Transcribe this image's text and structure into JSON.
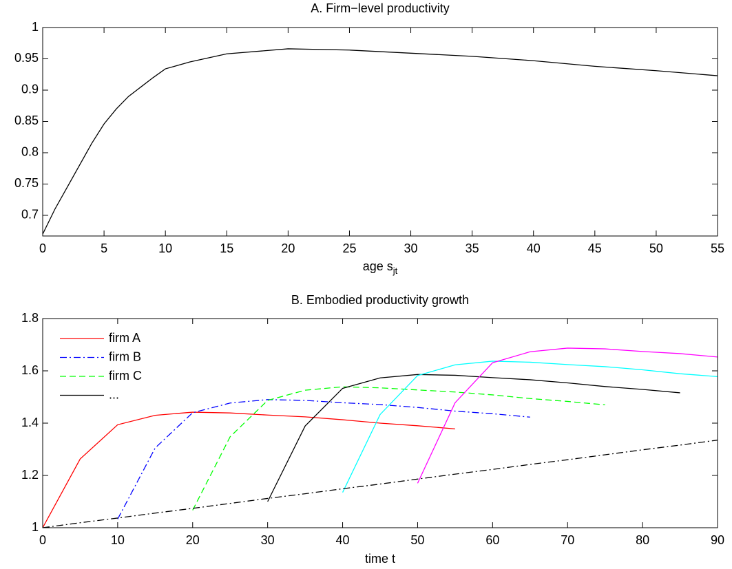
{
  "chart_data": [
    {
      "type": "line",
      "title": "A. Firm−level productivity",
      "xlabel": "age s",
      "xlabel_sub": "jt",
      "x": [
        0,
        1,
        2,
        3,
        4,
        5,
        6,
        7,
        8,
        9,
        10,
        12,
        15,
        20,
        25,
        30,
        35,
        40,
        45,
        50,
        55
      ],
      "series": [
        {
          "color": "#000000",
          "style": "solid",
          "values": [
            0.67,
            0.71,
            0.745,
            0.78,
            0.815,
            0.846,
            0.87,
            0.89,
            0.905,
            0.92,
            0.934,
            0.945,
            0.958,
            0.966,
            0.964,
            0.959,
            0.954,
            0.947,
            0.938,
            0.931,
            0.923
          ]
        }
      ],
      "xlim": [
        0,
        55
      ],
      "xticks": [
        0,
        5,
        10,
        15,
        20,
        25,
        30,
        35,
        40,
        45,
        50,
        55
      ],
      "ylim": [
        0.667,
        1
      ],
      "yticks": [
        0.7,
        0.75,
        0.8,
        0.85,
        0.9,
        0.95,
        1
      ]
    },
    {
      "type": "line",
      "title": "B. Embodied productivity growth",
      "xlabel": "time t",
      "x": [
        0,
        5,
        10,
        15,
        20,
        25,
        30,
        35,
        40,
        45,
        50,
        55,
        60,
        65,
        70,
        75,
        80,
        85,
        90
      ],
      "series": [
        {
          "name": "firm A",
          "color": "#ff0000",
          "style": "solid",
          "values": [
            1,
            1.263,
            1.394,
            1.43,
            1.442,
            1.439,
            1.431,
            1.424,
            1.413,
            1.4,
            1.39,
            1.378,
            null,
            null,
            null,
            null,
            null,
            null,
            null
          ]
        },
        {
          "name": "firm B",
          "color": "#0000ff",
          "style": "dashdot",
          "values": [
            null,
            null,
            1.033,
            1.305,
            1.44,
            1.477,
            1.49,
            1.487,
            1.478,
            1.471,
            1.46,
            1.446,
            1.436,
            1.423,
            null,
            null,
            null,
            null,
            null
          ]
        },
        {
          "name": "firm C",
          "color": "#00ff00",
          "style": "dashed",
          "values": [
            null,
            null,
            null,
            null,
            1.067,
            1.348,
            1.487,
            1.526,
            1.539,
            1.535,
            1.527,
            1.519,
            1.508,
            1.494,
            1.483,
            1.47,
            null,
            null,
            null
          ]
        },
        {
          "name": "...",
          "color": "#000000",
          "style": "solid",
          "values": [
            null,
            null,
            null,
            null,
            null,
            null,
            1.1,
            1.389,
            1.533,
            1.573,
            1.586,
            1.583,
            1.574,
            1.566,
            1.554,
            1.54,
            1.529,
            1.516,
            null
          ]
        },
        {
          "color": "#00ffff",
          "style": "solid",
          "values": [
            null,
            null,
            null,
            null,
            null,
            null,
            null,
            null,
            1.135,
            1.433,
            1.582,
            1.623,
            1.637,
            1.633,
            1.624,
            1.616,
            1.604,
            1.589,
            1.578
          ]
        },
        {
          "color": "#ff00ff",
          "style": "solid",
          "values": [
            null,
            null,
            null,
            null,
            null,
            null,
            null,
            null,
            null,
            null,
            1.17,
            1.478,
            1.631,
            1.673,
            1.687,
            1.684,
            1.674,
            1.666,
            1.653
          ]
        },
        {
          "color": "#000000",
          "style": "dashdot",
          "values": [
            1,
            1.019,
            1.037,
            1.056,
            1.074,
            1.093,
            1.112,
            1.13,
            1.149,
            1.167,
            1.186,
            1.205,
            1.223,
            1.242,
            1.26,
            1.279,
            1.298,
            1.316,
            1.335
          ]
        }
      ],
      "xlim": [
        0,
        90
      ],
      "xticks": [
        0,
        10,
        20,
        30,
        40,
        50,
        60,
        70,
        80,
        90
      ],
      "ylim": [
        1,
        1.8
      ],
      "yticks": [
        1,
        1.2,
        1.4,
        1.6,
        1.8
      ],
      "legend": "upper-left"
    }
  ]
}
